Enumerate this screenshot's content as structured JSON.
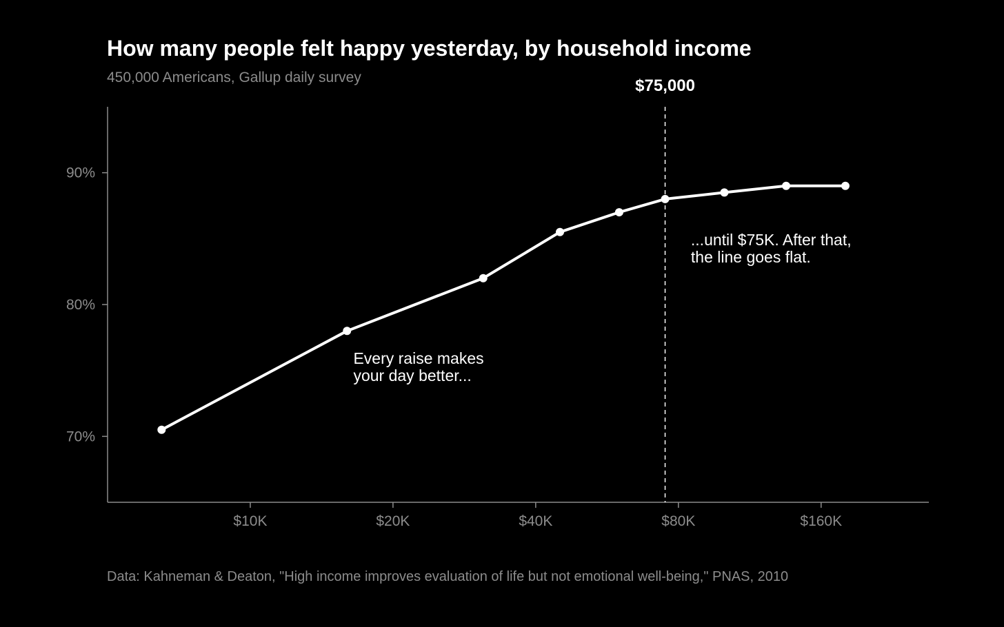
{
  "colors": {
    "background": "#000000",
    "line": "#ffffff",
    "axis": "#8c8c8c",
    "tick_text": "#8c8c8c",
    "annotation": "#ffffff"
  },
  "header": {
    "title": "How many people felt happy yesterday, by household income",
    "subtitle": "450,000 Americans, Gallup daily survey"
  },
  "footer": {
    "source": "Data: Kahneman & Deaton, \"High income improves evaluation of life but not emotional well-being,\" PNAS, 2010"
  },
  "chart_data": {
    "type": "line",
    "title": "How many people felt happy yesterday, by household income",
    "subtitle": "450,000 Americans, Gallup daily survey",
    "xlabel": "",
    "ylabel": "",
    "xscale": "log2",
    "xlim": [
      5000,
      270000
    ],
    "ylim": [
      65,
      95
    ],
    "x_ticks": [
      {
        "value": 10000,
        "label": "$10K"
      },
      {
        "value": 20000,
        "label": "$20K"
      },
      {
        "value": 40000,
        "label": "$40K"
      },
      {
        "value": 80000,
        "label": "$80K"
      },
      {
        "value": 160000,
        "label": "$160K"
      }
    ],
    "y_ticks": [
      {
        "value": 70,
        "label": "70%"
      },
      {
        "value": 80,
        "label": "80%"
      },
      {
        "value": 90,
        "label": "90%"
      }
    ],
    "grid": false,
    "legend": "none",
    "series": [
      {
        "x": [
          6500,
          16000,
          31000,
          45000,
          60000,
          75000,
          100000,
          135000,
          180000
        ],
        "y": [
          70.5,
          78.0,
          82.0,
          85.5,
          87.0,
          88.0,
          88.5,
          89.0,
          89.0
        ]
      }
    ],
    "reference_line": {
      "x": 75000,
      "style": "dashed",
      "label": "$75,000"
    },
    "annotations": [
      {
        "lines": [
          "Every raise makes",
          "your day better..."
        ],
        "x": 16500,
        "y": 75.5
      },
      {
        "lines": [
          "...until $75K. After that,",
          "the line goes flat."
        ],
        "x": 85000,
        "y": 84.5
      }
    ]
  }
}
